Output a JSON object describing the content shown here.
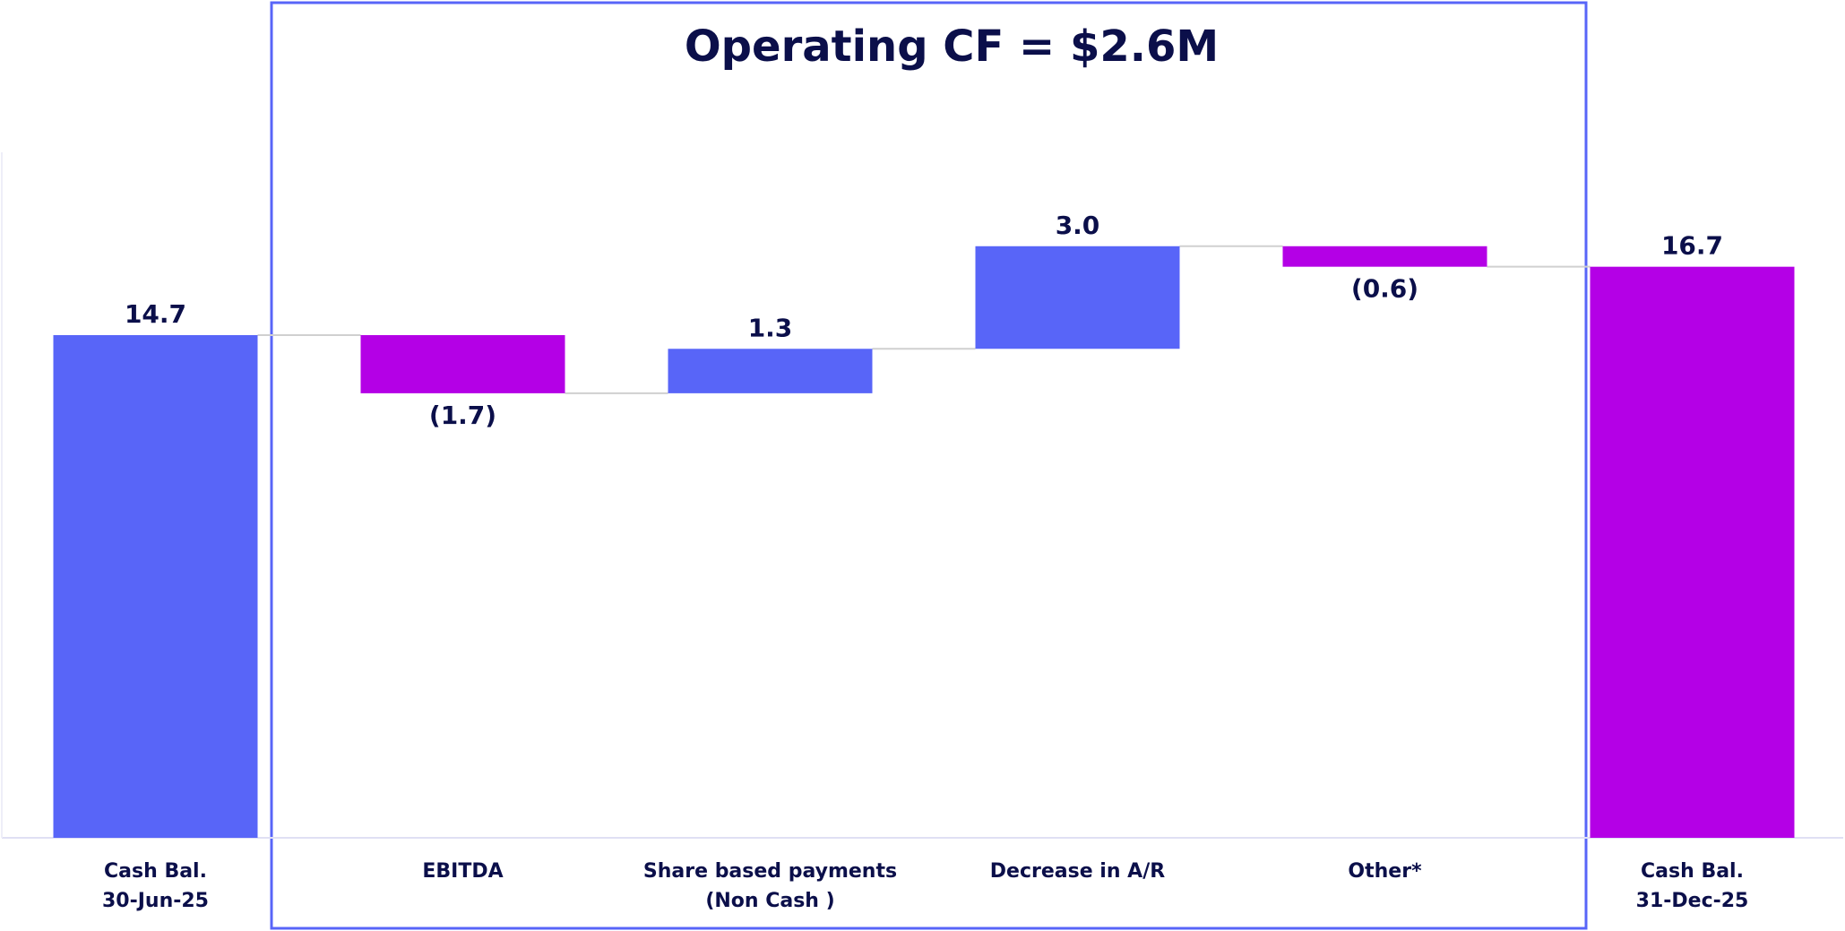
{
  "chart_data": {
    "type": "waterfall",
    "title": "Operating CF = $2.6M",
    "categories": [
      "Cash Bal.\n30-Jun-25",
      "EBITDA",
      "Share based payments\n(Non Cash )",
      "Decrease in A/R",
      "Other*",
      "Cash Bal.\n31-Dec-25"
    ],
    "values": [
      14.7,
      -1.7,
      1.3,
      3.0,
      -0.6,
      16.7
    ],
    "value_labels": [
      "14.7",
      "(1.7)",
      "1.3",
      "3.0",
      "(0.6)",
      "16.7"
    ],
    "measure": [
      "absolute",
      "relative",
      "relative",
      "relative",
      "relative",
      "absolute"
    ],
    "colors": [
      "#5865f8",
      "#b400e6",
      "#5865f8",
      "#5865f8",
      "#b400e6",
      "#b400e6"
    ],
    "ylim": [
      0,
      24.5
    ]
  }
}
